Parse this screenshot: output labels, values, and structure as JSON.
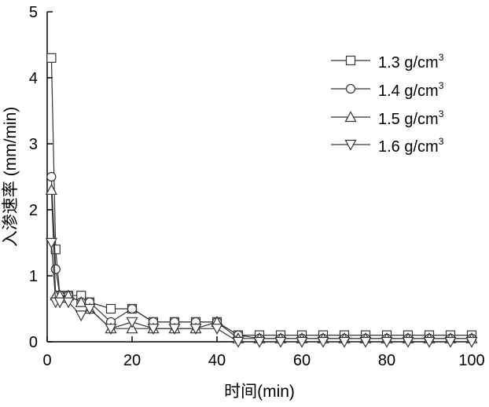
{
  "chart_data": {
    "type": "line",
    "xlabel": "时间(min)",
    "ylabel": "入渗速率 (mm/min)",
    "xlim": [
      0,
      100
    ],
    "ylim": [
      0,
      5
    ],
    "x_ticks": [
      "0",
      "20",
      "40",
      "60",
      "80",
      "100"
    ],
    "y_ticks": [
      "0",
      "1",
      "2",
      "3",
      "4",
      "5"
    ],
    "grid": false,
    "legend_position": "top-right",
    "series": [
      {
        "name": "1.3 g/cm3",
        "label_base": "1.3 g/cm",
        "label_sup": "3",
        "marker": "square",
        "x": [
          1,
          2,
          3,
          5,
          8,
          10,
          15,
          20,
          25,
          30,
          35,
          40,
          45,
          50,
          55,
          60,
          65,
          70,
          75,
          80,
          85,
          90,
          95,
          100
        ],
        "y": [
          4.3,
          1.4,
          0.7,
          0.7,
          0.7,
          0.6,
          0.5,
          0.5,
          0.3,
          0.3,
          0.3,
          0.3,
          0.1,
          0.1,
          0.1,
          0.1,
          0.1,
          0.1,
          0.1,
          0.1,
          0.1,
          0.1,
          0.1,
          0.1
        ]
      },
      {
        "name": "1.4 g/cm3",
        "label_base": "1.4 g/cm",
        "label_sup": "3",
        "marker": "circle",
        "x": [
          1,
          2,
          3,
          5,
          8,
          10,
          15,
          20,
          25,
          30,
          35,
          40,
          45,
          50,
          55,
          60,
          65,
          70,
          75,
          80,
          85,
          90,
          95,
          100
        ],
        "y": [
          2.5,
          1.1,
          0.7,
          0.7,
          0.6,
          0.6,
          0.3,
          0.5,
          0.3,
          0.3,
          0.3,
          0.3,
          0.1,
          0.05,
          0.05,
          0.05,
          0.05,
          0.05,
          0.05,
          0.05,
          0.05,
          0.05,
          0.05,
          0.05
        ]
      },
      {
        "name": "1.5 g/cm3",
        "label_base": "1.5 g/cm",
        "label_sup": "3",
        "marker": "triangle-up",
        "x": [
          1,
          2,
          3,
          5,
          8,
          10,
          15,
          20,
          25,
          30,
          35,
          40,
          45,
          50,
          55,
          60,
          65,
          70,
          75,
          80,
          85,
          90,
          95,
          100
        ],
        "y": [
          2.3,
          0.7,
          0.7,
          0.7,
          0.6,
          0.5,
          0.2,
          0.2,
          0.2,
          0.2,
          0.2,
          0.3,
          0.05,
          0.05,
          0.05,
          0.05,
          0.05,
          0.05,
          0.05,
          0.05,
          0.05,
          0.05,
          0.05,
          0.05
        ]
      },
      {
        "name": "1.6 g/cm3",
        "label_base": "1.6 g/cm",
        "label_sup": "3",
        "marker": "triangle-down",
        "x": [
          1,
          2,
          3,
          5,
          8,
          10,
          15,
          20,
          25,
          30,
          35,
          40,
          45,
          50,
          55,
          60,
          65,
          70,
          75,
          80,
          85,
          90,
          95,
          100
        ],
        "y": [
          1.5,
          0.6,
          0.6,
          0.6,
          0.4,
          0.5,
          0.2,
          0.3,
          0.2,
          0.2,
          0.2,
          0.2,
          0.0,
          0.0,
          0.0,
          0.0,
          0.0,
          0.0,
          0.0,
          0.0,
          0.0,
          0.0,
          0.0,
          0.0
        ]
      }
    ]
  },
  "colors": {
    "axis": "#000000",
    "series_line": "#333333",
    "marker_fill": "#ffffff"
  }
}
